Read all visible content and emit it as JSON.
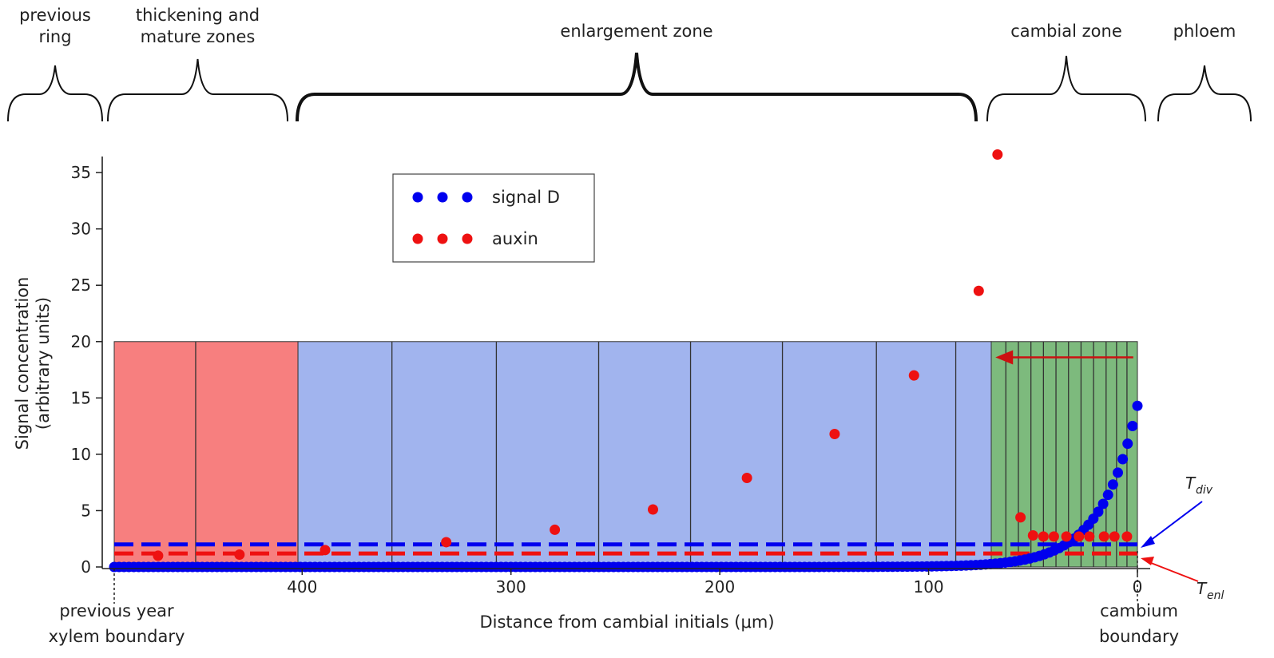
{
  "chart_data": {
    "type": "scatter",
    "xlabel": "Distance from cambial initials (μm)",
    "ylabel_lines": [
      "Signal concentration",
      "(arbitrary units)"
    ],
    "xlim": [
      490,
      0
    ],
    "ylim": [
      0,
      36
    ],
    "x_ticks": [
      {
        "value": 400,
        "label": "400"
      },
      {
        "value": 300,
        "label": "300"
      },
      {
        "value": 200,
        "label": "200"
      },
      {
        "value": 100,
        "label": "100"
      },
      {
        "value": 0,
        "label": "0"
      }
    ],
    "y_ticks": [
      {
        "value": 0,
        "label": "0"
      },
      {
        "value": 5,
        "label": "5"
      },
      {
        "value": 10,
        "label": "10"
      },
      {
        "value": 15,
        "label": "15"
      },
      {
        "value": 20,
        "label": "20"
      },
      {
        "value": 25,
        "label": "25"
      },
      {
        "value": 30,
        "label": "30"
      },
      {
        "value": 35,
        "label": "35"
      }
    ],
    "legend": {
      "position": "upper-left-center"
    },
    "series": [
      {
        "name": "signal D",
        "color": "#0000ee",
        "model": {
          "kind": "exponential",
          "y_at_zero": 14.3,
          "decay_length": 17.5,
          "x_start": 490,
          "x_end": 0,
          "point_count": 210
        }
      },
      {
        "name": "auxin",
        "color": "#ee1111",
        "points": [
          {
            "x": 469,
            "y": 1.0
          },
          {
            "x": 430,
            "y": 1.1
          },
          {
            "x": 389,
            "y": 1.5
          },
          {
            "x": 331,
            "y": 2.2
          },
          {
            "x": 279,
            "y": 3.3
          },
          {
            "x": 232,
            "y": 5.1
          },
          {
            "x": 187,
            "y": 7.9
          },
          {
            "x": 145,
            "y": 11.8
          },
          {
            "x": 107,
            "y": 17.0
          },
          {
            "x": 76,
            "y": 24.5
          },
          {
            "x": 67,
            "y": 36.6
          },
          {
            "x": 56,
            "y": 4.4
          },
          {
            "x": 50,
            "y": 2.8
          },
          {
            "x": 45,
            "y": 2.7
          },
          {
            "x": 40,
            "y": 2.7
          },
          {
            "x": 34,
            "y": 2.7
          },
          {
            "x": 28,
            "y": 2.7
          },
          {
            "x": 23,
            "y": 2.7
          },
          {
            "x": 16,
            "y": 2.7
          },
          {
            "x": 11,
            "y": 2.7
          },
          {
            "x": 5,
            "y": 2.7
          }
        ]
      }
    ],
    "thresholds": [
      {
        "name": "T_div",
        "label_main": "T",
        "label_sub": "div",
        "value": 2.0,
        "color": "#0000ee"
      },
      {
        "name": "T_enl",
        "label_main": "T",
        "label_sub": "enl",
        "value": 1.2,
        "color": "#ee1111"
      }
    ],
    "cell_bands": [
      {
        "kind": "mature",
        "color": "#f77f7f",
        "x_from": 490,
        "x_to": 402,
        "walls": [
          451
        ]
      },
      {
        "kind": "enlargement",
        "color": "#a1b4ee",
        "x_from": 402,
        "x_to": 70,
        "walls": [
          357,
          307,
          258,
          214,
          170,
          125,
          87
        ]
      },
      {
        "kind": "cambial",
        "color": "#7dba7d",
        "x_from": 70,
        "x_to": 0,
        "walls": [
          63,
          57,
          51,
          45,
          39,
          33,
          27,
          21,
          15,
          10,
          5
        ]
      }
    ],
    "band_top": 20,
    "arrow": {
      "from_x": 2,
      "to_x": 68,
      "y": 18.6,
      "color": "#cc1111"
    }
  },
  "zones": [
    {
      "lines": [
        "previous",
        "ring"
      ]
    },
    {
      "lines": [
        "thickening and",
        "mature zones"
      ]
    },
    {
      "lines": [
        "enlargement zone"
      ]
    },
    {
      "lines": [
        "cambial zone"
      ]
    },
    {
      "lines": [
        "phloem"
      ]
    }
  ],
  "annotations": {
    "left_boundary": [
      "previous year",
      "xylem boundary"
    ],
    "right_boundary": [
      "cambium",
      "boundary"
    ]
  }
}
